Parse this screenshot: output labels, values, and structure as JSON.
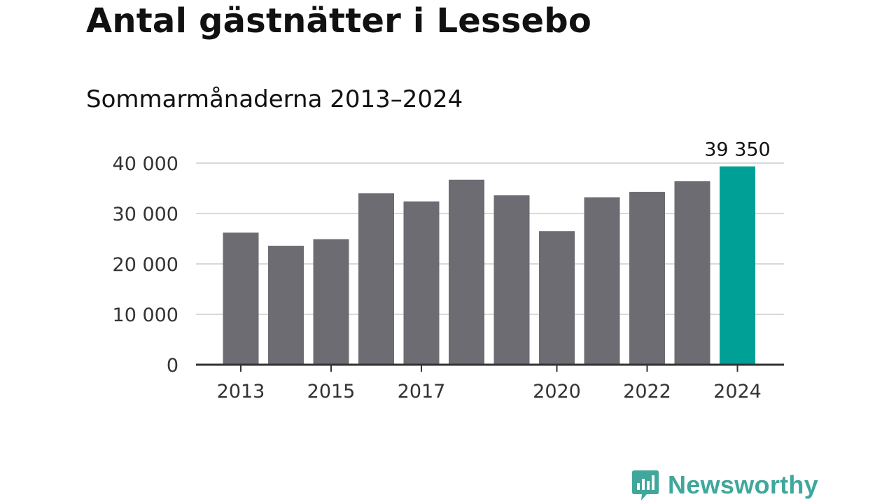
{
  "title": "Antal gästnätter i Lessebo",
  "subtitle": "Sommarmånaderna 2013–2024",
  "colors": {
    "bar": "#6d6c72",
    "highlight": "#00a096",
    "grid": "#d9d9d9",
    "axis": "#333333",
    "brand": "#3fa79b"
  },
  "chart_data": {
    "type": "bar",
    "categories": [
      "2013",
      "2014",
      "2015",
      "2016",
      "2017",
      "2018",
      "2019",
      "2020",
      "2021",
      "2022",
      "2023",
      "2024"
    ],
    "values": [
      26200,
      23600,
      24900,
      34000,
      32400,
      36700,
      33600,
      26500,
      33200,
      34300,
      36400,
      39350
    ],
    "highlight_index": 11,
    "data_labels": [
      {
        "index": 11,
        "text": "39 350"
      }
    ],
    "xticks": [
      "2013",
      "2015",
      "2017",
      "2020",
      "2022",
      "2024"
    ],
    "yticks": [
      0,
      10000,
      20000,
      30000,
      40000
    ],
    "ytick_labels": [
      "0",
      "10 000",
      "20 000",
      "30 000",
      "40 000"
    ],
    "ylim": [
      0,
      40000
    ],
    "grid": true,
    "legend": "none"
  },
  "logo": {
    "text": "Newsworthy",
    "icon": "newsworthy-chart-bubble-icon"
  }
}
